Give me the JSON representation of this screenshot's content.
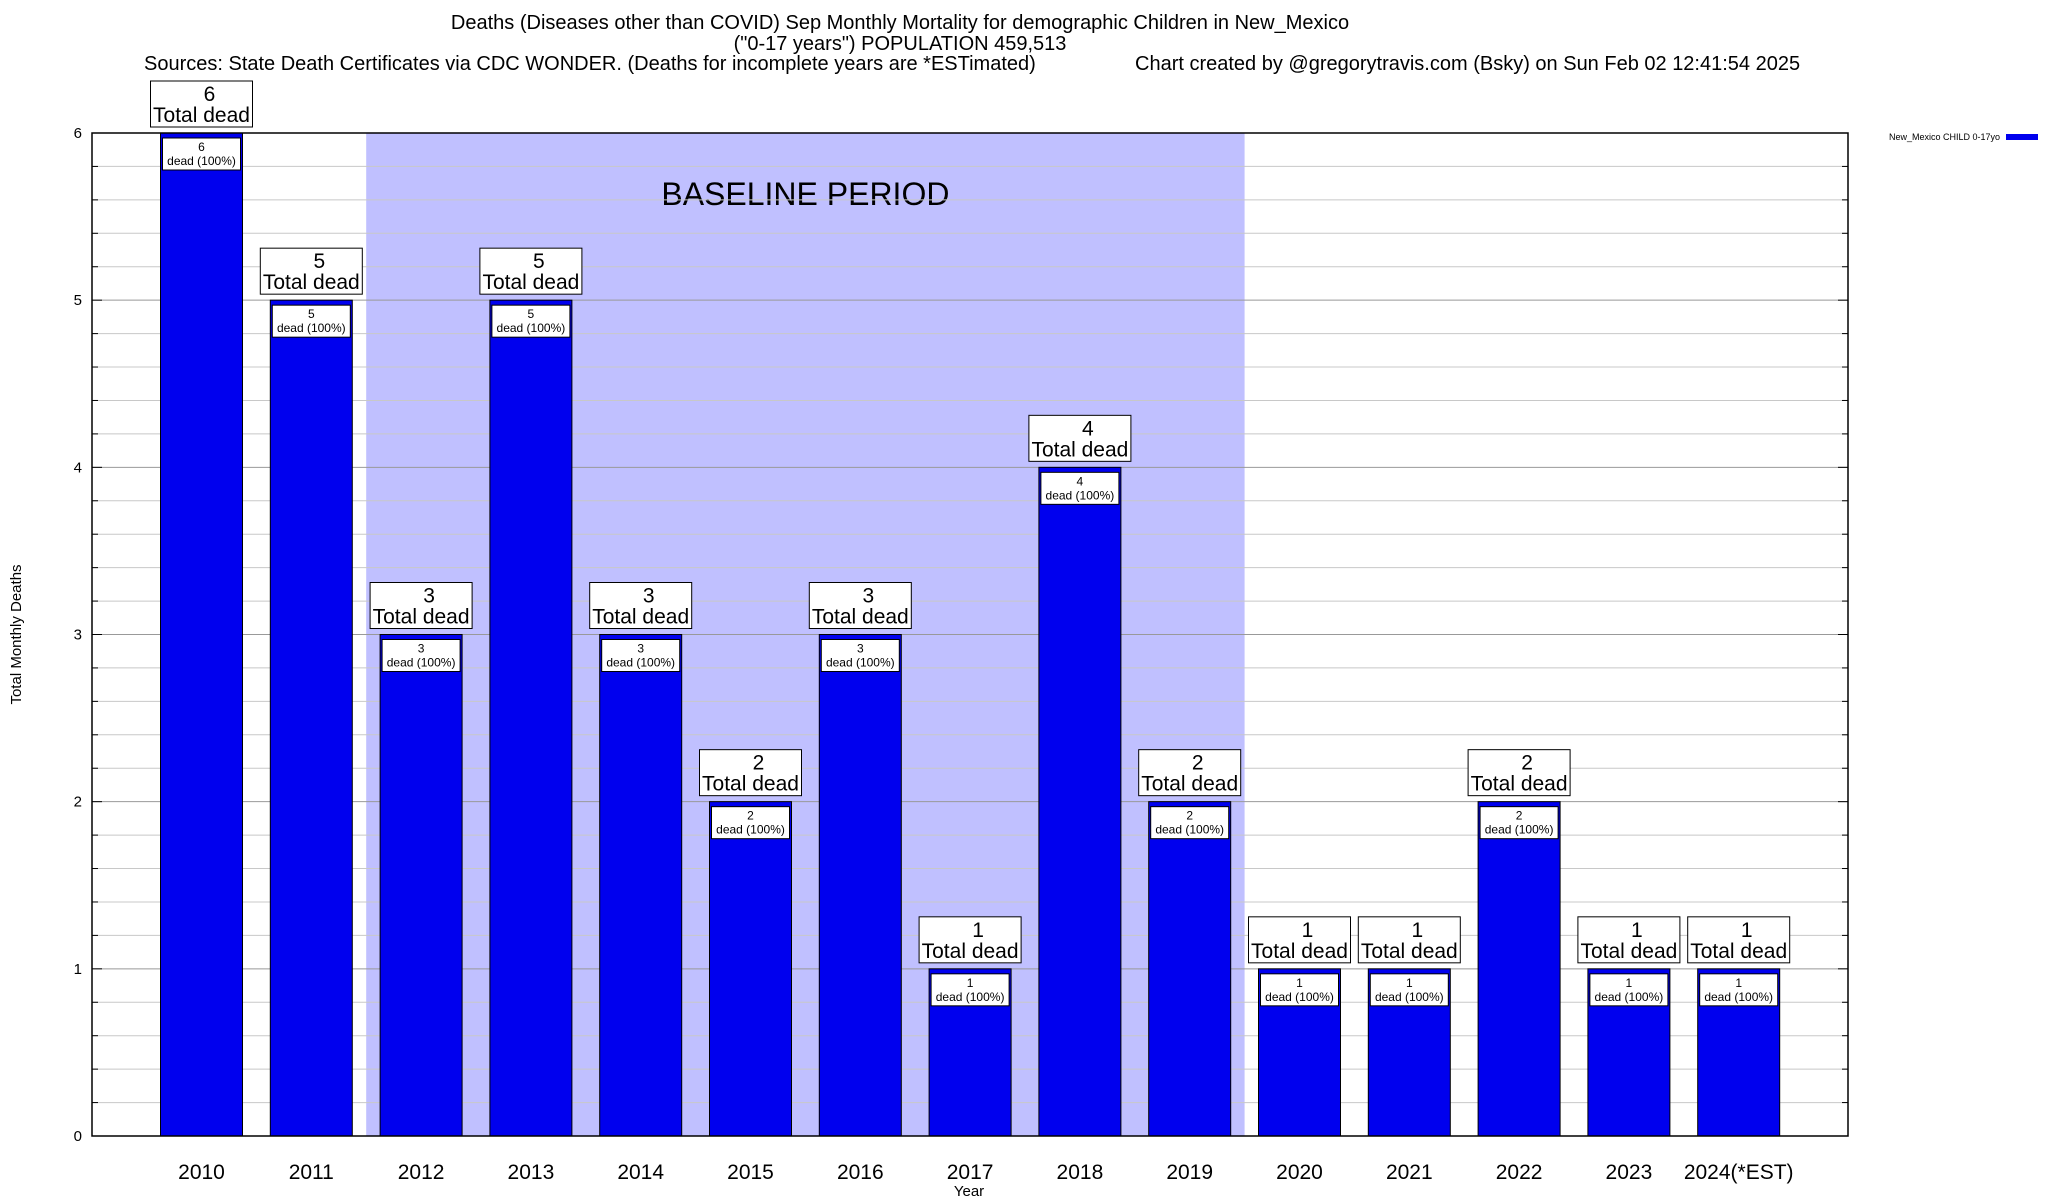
{
  "chart_data": {
    "type": "bar",
    "title": "Deaths (Diseases other than COVID) Sep Monthly Mortality for demographic Children in New_Mexico",
    "subtitle": "(\"0-17 years\") POPULATION 459,513",
    "sources": "Sources: State Death Certificates via CDC WONDER. (Deaths for incomplete years are *ESTimated)",
    "credit": "Chart created by @gregorytravis.com (Bsky) on Sun Feb 02 12:41:54 2025",
    "xlabel": "Year",
    "ylabel": "Total Monthly Deaths",
    "ylim": [
      0,
      6
    ],
    "yticks": [
      "0",
      "1",
      "2",
      "3",
      "4",
      "5",
      "6"
    ],
    "categories": [
      "2010",
      "2011",
      "2012",
      "2013",
      "2014",
      "2015",
      "2016",
      "2017",
      "2018",
      "2019",
      "2020",
      "2021",
      "2022",
      "2023",
      "2024(*EST)"
    ],
    "series": [
      {
        "name": "New_Mexico CHILD 0-17yo",
        "color": "#0000ee",
        "values": [
          6,
          5,
          3,
          5,
          3,
          2,
          3,
          1,
          4,
          2,
          1,
          1,
          2,
          1,
          1
        ]
      }
    ],
    "total_label_suffix": "Total dead",
    "bar_label_suffix": "dead (100%)",
    "baseline": {
      "label": "BASELINE PERIOD",
      "from": "2012",
      "to": "2019",
      "color": "#c0c0ff"
    },
    "legend_position": "top-right",
    "grid": true
  }
}
